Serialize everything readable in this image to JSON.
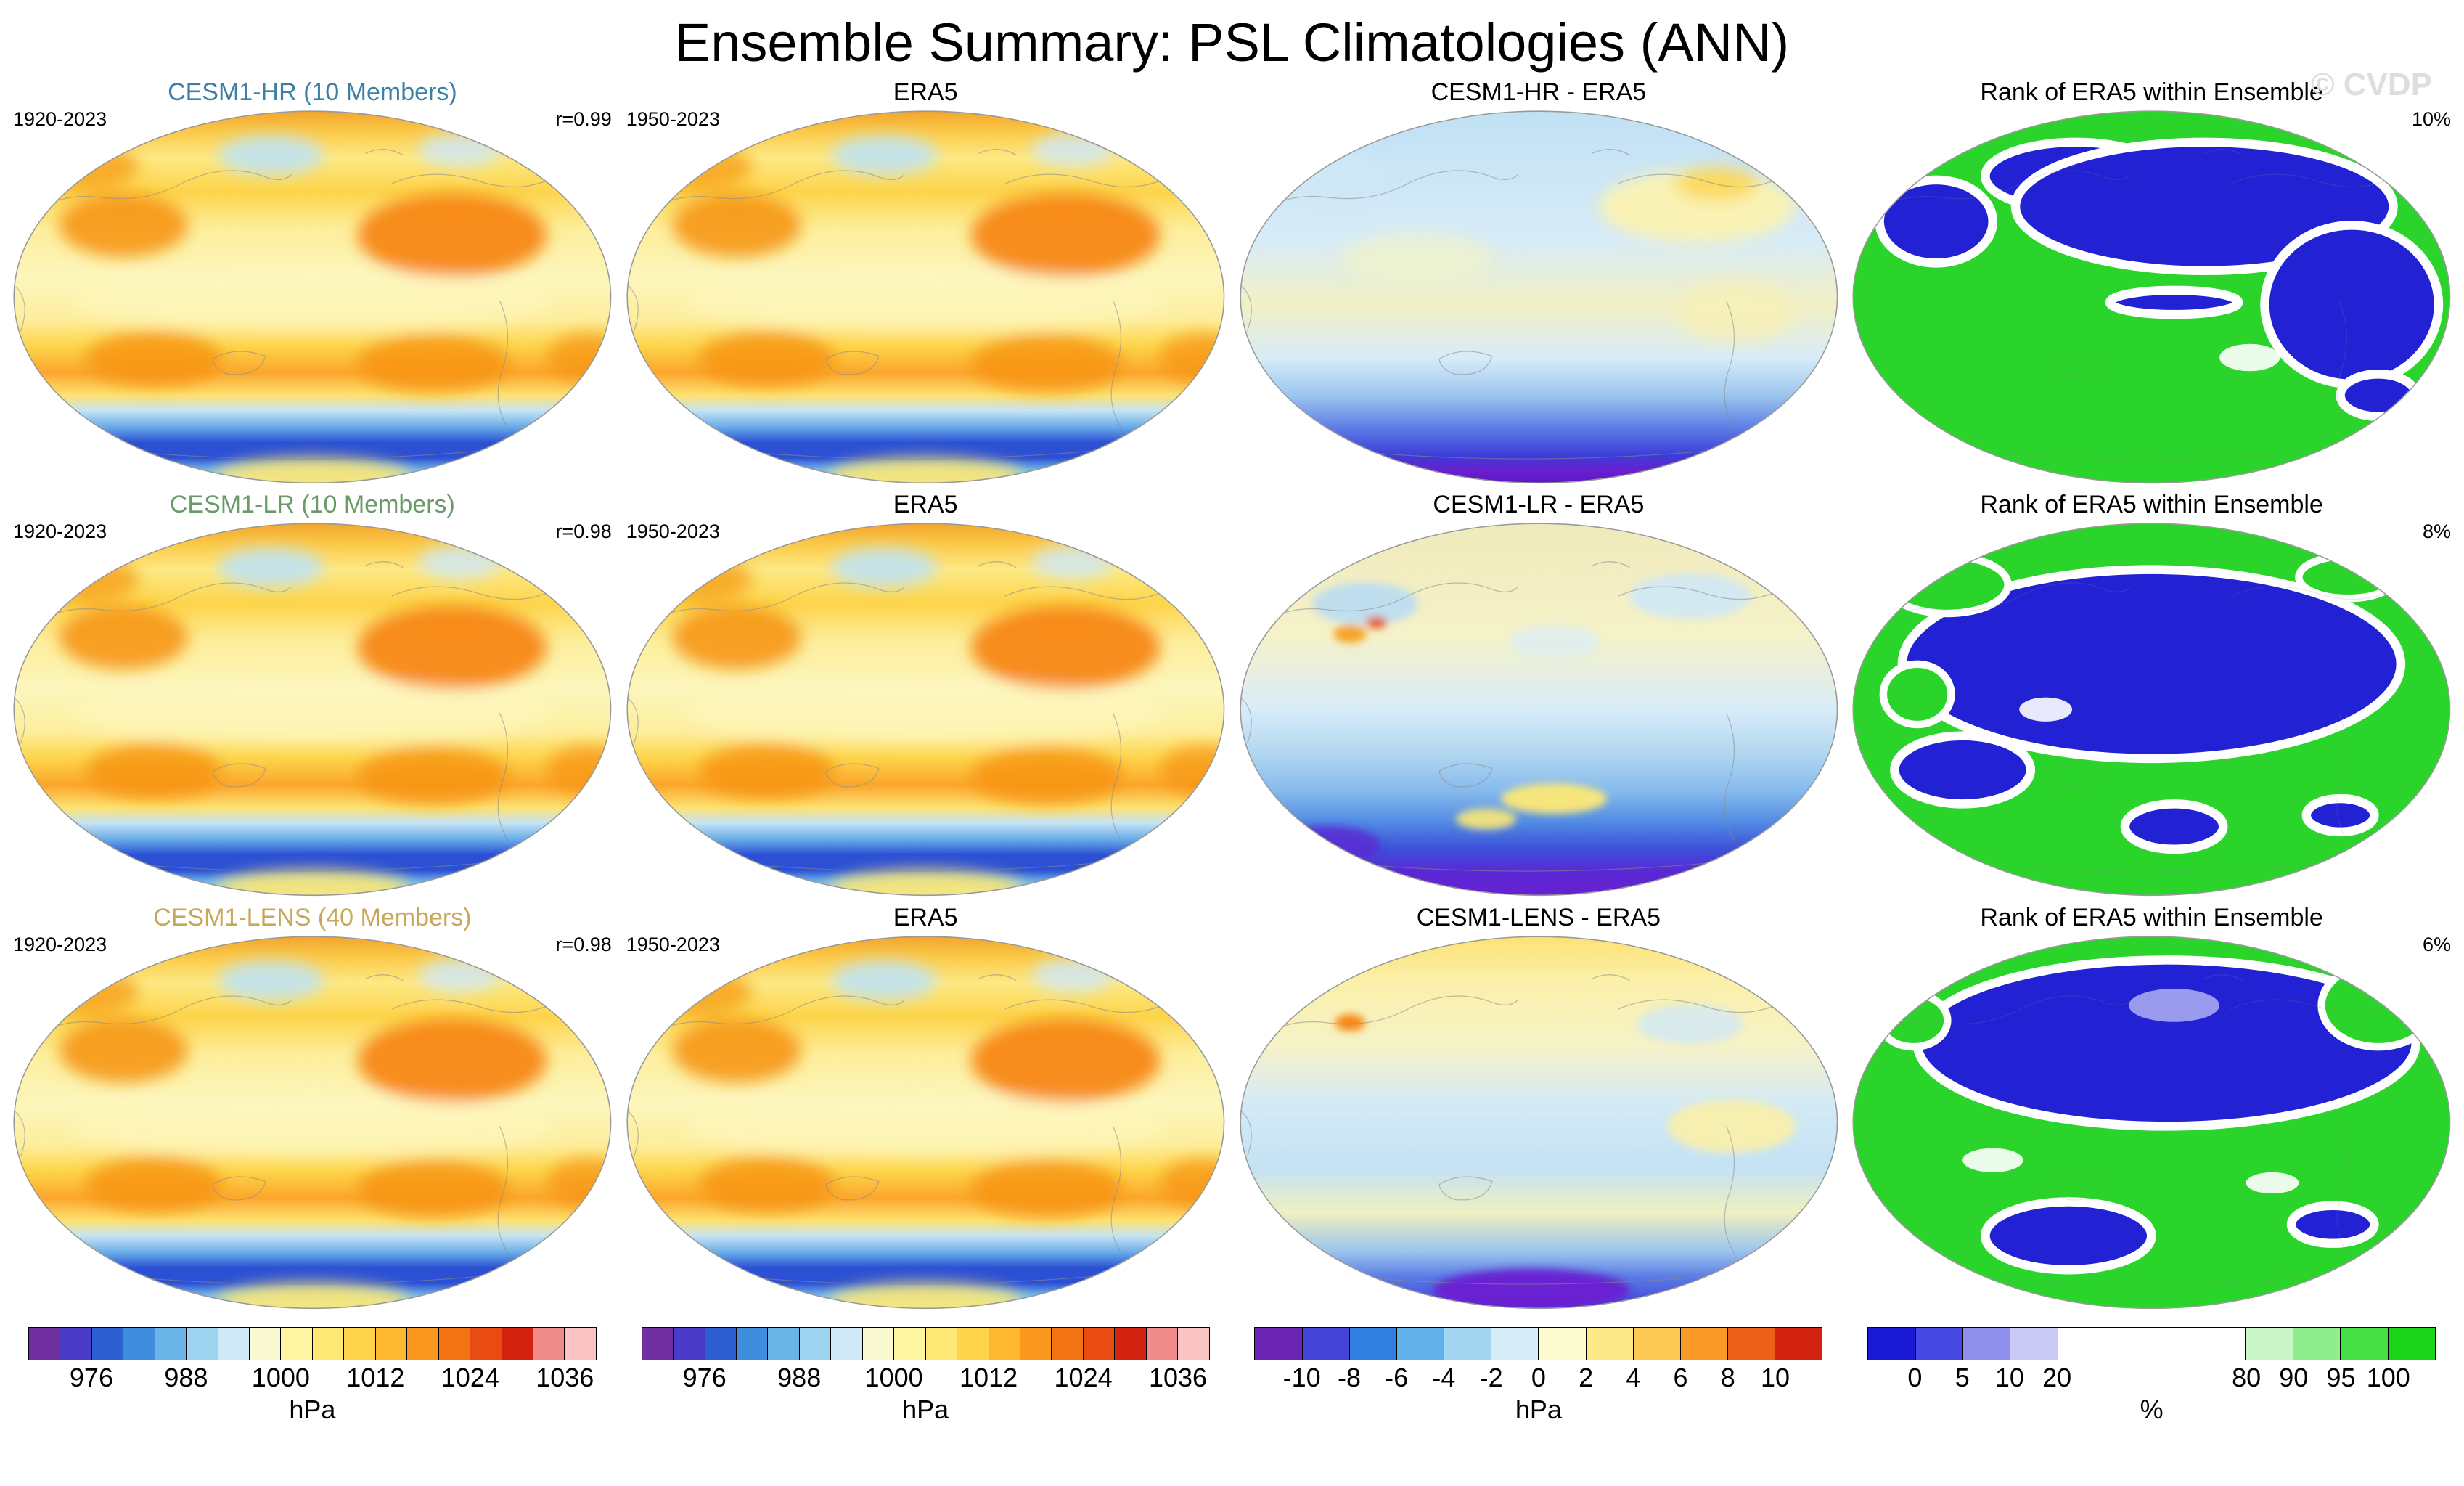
{
  "page": {
    "title": "Ensemble Summary: PSL Climatologies (ANN)",
    "watermark": "© CVDP"
  },
  "rows": [
    {
      "model": {
        "title": "CESM1-HR (10 Members)",
        "title_color": "#3d7fa6",
        "years": "1920-2023",
        "stat": "r=0.99"
      },
      "obs": {
        "title": "ERA5",
        "years": "1950-2023"
      },
      "diff": {
        "title": "CESM1-HR - ERA5"
      },
      "rank": {
        "title": "Rank of ERA5 within Ensemble",
        "stat": "10%"
      }
    },
    {
      "model": {
        "title": "CESM1-LR (10 Members)",
        "title_color": "#6a9a6a",
        "years": "1920-2023",
        "stat": "r=0.98"
      },
      "obs": {
        "title": "ERA5",
        "years": "1950-2023"
      },
      "diff": {
        "title": "CESM1-LR - ERA5"
      },
      "rank": {
        "title": "Rank of ERA5 within Ensemble",
        "stat": "8%"
      }
    },
    {
      "model": {
        "title": "CESM1-LENS (40 Members)",
        "title_color": "#c7a858",
        "years": "1920-2023",
        "stat": "r=0.98"
      },
      "obs": {
        "title": "ERA5",
        "years": "1950-2023"
      },
      "diff": {
        "title": "CESM1-LENS - ERA5"
      },
      "rank": {
        "title": "Rank of ERA5 within Ensemble",
        "stat": "6%"
      }
    }
  ],
  "colorbars": {
    "hpa": {
      "unit": "hPa",
      "segments": [
        "#7030a0",
        "#4a3cc8",
        "#2e5fd0",
        "#3f8ede",
        "#6ab4e8",
        "#9fd4f0",
        "#cfeaf6",
        "#fafad2",
        "#fdf5a0",
        "#fde875",
        "#fdd44a",
        "#fdb830",
        "#fa9820",
        "#f47314",
        "#e84c10",
        "#d3220f",
        "#f08c8c",
        "#fbc4c4"
      ],
      "ticks": [
        {
          "label": "976",
          "pos": 0.1111
        },
        {
          "label": "988",
          "pos": 0.2778
        },
        {
          "label": "1000",
          "pos": 0.4444
        },
        {
          "label": "1012",
          "pos": 0.6111
        },
        {
          "label": "1024",
          "pos": 0.7778
        },
        {
          "label": "1036",
          "pos": 0.9444
        }
      ]
    },
    "diff": {
      "unit": "hPa",
      "segments": [
        "#6a24b4",
        "#4444d8",
        "#2f7ee0",
        "#62b0ea",
        "#a4d6f2",
        "#d8edf8",
        "#fdfbd0",
        "#fde88a",
        "#fdc953",
        "#f99a29",
        "#ec5f16",
        "#d3220f"
      ],
      "ticks": [
        {
          "label": "-10",
          "pos": 0.0833
        },
        {
          "label": "-8",
          "pos": 0.1667
        },
        {
          "label": "-6",
          "pos": 0.25
        },
        {
          "label": "-4",
          "pos": 0.3333
        },
        {
          "label": "-2",
          "pos": 0.4167
        },
        {
          "label": "0",
          "pos": 0.5
        },
        {
          "label": "2",
          "pos": 0.5833
        },
        {
          "label": "4",
          "pos": 0.6667
        },
        {
          "label": "6",
          "pos": 0.75
        },
        {
          "label": "8",
          "pos": 0.8333
        },
        {
          "label": "10",
          "pos": 0.9167
        }
      ]
    },
    "rank": {
      "unit": "%",
      "segments": [
        {
          "color": "#1a1ad4",
          "span": 1
        },
        {
          "color": "#4646e0",
          "span": 1
        },
        {
          "color": "#9090ec",
          "span": 1
        },
        {
          "color": "#cacaf6",
          "span": 1
        },
        {
          "color": "#ffffff",
          "span": 4
        },
        {
          "color": "#caf6ca",
          "span": 1
        },
        {
          "color": "#8fec8f",
          "span": 1
        },
        {
          "color": "#46e046",
          "span": 1
        },
        {
          "color": "#1ad41a",
          "span": 1
        }
      ],
      "ticks": [
        {
          "label": "0",
          "pos": 0.0833
        },
        {
          "label": "5",
          "pos": 0.1667
        },
        {
          "label": "10",
          "pos": 0.25
        },
        {
          "label": "20",
          "pos": 0.3333
        },
        {
          "label": "80",
          "pos": 0.6667
        },
        {
          "label": "90",
          "pos": 0.75
        },
        {
          "label": "95",
          "pos": 0.8333
        },
        {
          "label": "100",
          "pos": 0.9167
        }
      ]
    }
  },
  "chart_data": {
    "type": "heatmap",
    "subtype": "global-map-grid",
    "title": "Ensemble Summary: PSL Climatologies (ANN)",
    "variable": "PSL (sea level pressure) annual climatology",
    "layout": "3 rows x 4 columns of global map projections; columns = [ensemble mean climatology, ERA5 climatology, ensemble minus ERA5 difference, rank of ERA5 within ensemble]",
    "watermark": "© CVDP",
    "rows": [
      {
        "ensemble": "CESM1-HR",
        "members": 10,
        "period": "1920-2023",
        "obs": "ERA5",
        "obs_period": "1950-2023",
        "pattern_correlation_r": 0.99,
        "era5_rank_within_ensemble_pct": 10,
        "panel_titles": [
          "CESM1-HR (10 Members)",
          "ERA5",
          "CESM1-HR - ERA5",
          "Rank of ERA5 within Ensemble"
        ]
      },
      {
        "ensemble": "CESM1-LR",
        "members": 10,
        "period": "1920-2023",
        "obs": "ERA5",
        "obs_period": "1950-2023",
        "pattern_correlation_r": 0.98,
        "era5_rank_within_ensemble_pct": 8,
        "panel_titles": [
          "CESM1-LR (10 Members)",
          "ERA5",
          "CESM1-LR - ERA5",
          "Rank of ERA5 within Ensemble"
        ]
      },
      {
        "ensemble": "CESM1-LENS",
        "members": 40,
        "period": "1920-2023",
        "obs": "ERA5",
        "obs_period": "1950-2023",
        "pattern_correlation_r": 0.98,
        "era5_rank_within_ensemble_pct": 6,
        "panel_titles": [
          "CESM1-LENS (40 Members)",
          "ERA5",
          "CESM1-LENS - ERA5",
          "Rank of ERA5 within Ensemble"
        ]
      }
    ],
    "colorbars": {
      "climatology": {
        "unit": "hPa",
        "tick_values": [
          976,
          988,
          1000,
          1012,
          1024,
          1036
        ]
      },
      "difference": {
        "unit": "hPa",
        "tick_values": [
          -10,
          -8,
          -6,
          -4,
          -2,
          0,
          2,
          4,
          6,
          8,
          10
        ]
      },
      "rank": {
        "unit": "%",
        "tick_values": [
          0,
          5,
          10,
          20,
          80,
          90,
          95,
          100
        ]
      }
    }
  }
}
